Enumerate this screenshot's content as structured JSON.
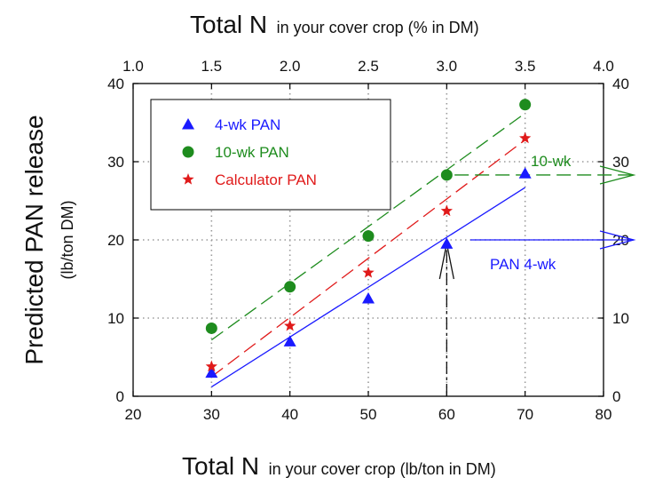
{
  "chart_data": {
    "type": "scatter",
    "x_bottom": {
      "label_main": "Total N",
      "label_sub": "in your cover crop (lb/ton in DM)",
      "range": [
        20,
        80
      ],
      "ticks": [
        "20",
        "30",
        "40",
        "50",
        "60",
        "70",
        "80"
      ]
    },
    "x_top": {
      "label_main": "Total N",
      "label_sub": "in your cover crop (% in DM)",
      "range": [
        1.0,
        4.0
      ],
      "ticks": [
        "1.0",
        "1.5",
        "2.0",
        "2.5",
        "3.0",
        "3.5",
        "4.0"
      ]
    },
    "y": {
      "label_main": "Predicted PAN release",
      "label_sub": "(lb/ton DM)",
      "range": [
        0,
        40
      ],
      "ticks": [
        "0",
        "10",
        "20",
        "30",
        "40"
      ]
    },
    "grid": true,
    "legend_position": "top-left",
    "series": [
      {
        "name": "4-wk PAN",
        "color": "#1a1aff",
        "marker": "triangle",
        "x": [
          30,
          40,
          50,
          60,
          70
        ],
        "y": [
          3,
          7,
          12.5,
          19.5,
          28.5
        ],
        "fit": {
          "x": [
            30,
            70
          ],
          "y": [
            1.2,
            26.7
          ],
          "style": "solid"
        }
      },
      {
        "name": "10-wk PAN",
        "color": "#1e8c1e",
        "marker": "circle",
        "x": [
          30,
          40,
          50,
          60,
          70
        ],
        "y": [
          8.7,
          14,
          20.5,
          28.3,
          37.3
        ],
        "fit": {
          "x": [
            30,
            70
          ],
          "y": [
            7.2,
            36.2
          ],
          "style": "dashed"
        }
      },
      {
        "name": "Calculator PAN",
        "color": "#e01a1a",
        "marker": "star",
        "x": [
          30,
          40,
          50,
          60,
          70
        ],
        "y": [
          3.8,
          9,
          15.8,
          23.7,
          33
        ],
        "fit": {
          "x": [
            30,
            70
          ],
          "y": [
            2.5,
            32.8
          ],
          "style": "dashed"
        }
      }
    ],
    "annotations": [
      {
        "text": "10-wk",
        "color": "#1e8c1e",
        "from_x": 61,
        "to_x": 80,
        "y": 28.3
      },
      {
        "text": "PAN 4-wk",
        "color": "#1a1aff",
        "from_x": 63,
        "to_x": 80,
        "y": 20
      },
      {
        "text": "",
        "color": "#111111",
        "x": 60,
        "from_y": 0,
        "to_y": 20
      }
    ]
  }
}
